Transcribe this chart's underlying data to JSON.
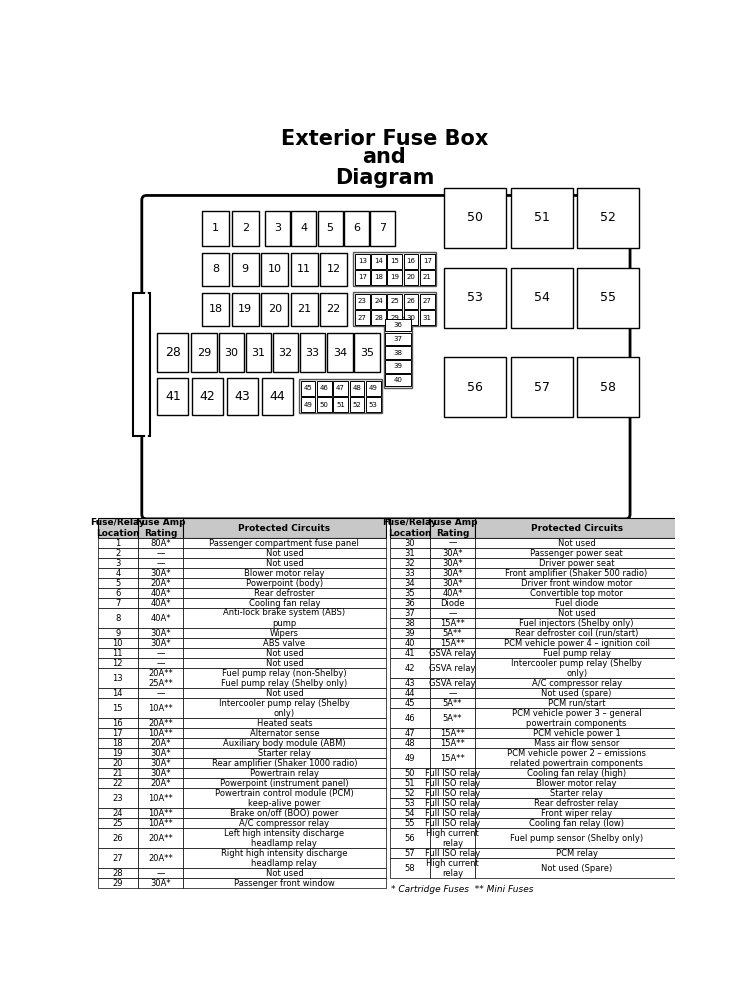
{
  "title_lines": [
    "Exterior Fuse Box",
    "and",
    "Diagram"
  ],
  "bg_color": "#ffffff",
  "table_left": {
    "headers": [
      "Fuse/Relay\nLocation",
      "Fuse Amp\nRating",
      "Protected Circuits"
    ],
    "rows": [
      [
        "1",
        "80A*",
        "Passenger compartment fuse panel"
      ],
      [
        "2",
        "—",
        "Not used"
      ],
      [
        "3",
        "—",
        "Not used"
      ],
      [
        "4",
        "30A*",
        "Blower motor relay"
      ],
      [
        "5",
        "20A*",
        "Powerpoint (body)"
      ],
      [
        "6",
        "40A*",
        "Rear defroster"
      ],
      [
        "7",
        "40A*",
        "Cooling fan relay"
      ],
      [
        "8",
        "40A*",
        "Anti-lock brake system (ABS)\npump"
      ],
      [
        "9",
        "30A*",
        "Wipers"
      ],
      [
        "10",
        "30A*",
        "ABS valve"
      ],
      [
        "11",
        "—",
        "Not used"
      ],
      [
        "12",
        "—",
        "Not used"
      ],
      [
        "13",
        "20A**\n25A**",
        "Fuel pump relay (non-Shelby)\nFuel pump relay (Shelby only)"
      ],
      [
        "14",
        "—",
        "Not used"
      ],
      [
        "15",
        "10A**",
        "Intercooler pump relay (Shelby\nonly)"
      ],
      [
        "16",
        "20A**",
        "Heated seats"
      ],
      [
        "17",
        "10A**",
        "Alternator sense"
      ],
      [
        "18",
        "20A*",
        "Auxiliary body module (ABM)"
      ],
      [
        "19",
        "30A*",
        "Starter relay"
      ],
      [
        "20",
        "30A*",
        "Rear amplifier (Shaker 1000 radio)"
      ],
      [
        "21",
        "30A*",
        "Powertrain relay"
      ],
      [
        "22",
        "20A*",
        "Powerpoint (instrument panel)"
      ],
      [
        "23",
        "10A**",
        "Powertrain control module (PCM)\nkeep-alive power"
      ],
      [
        "24",
        "10A**",
        "Brake on/off (BOO) power"
      ],
      [
        "25",
        "10A**",
        "A/C compressor relay"
      ],
      [
        "26",
        "20A**",
        "Left high intensity discharge\nheadlamp relay"
      ],
      [
        "27",
        "20A**",
        "Right high intensity discharge\nheadlamp relay"
      ],
      [
        "28",
        "—",
        "Not used"
      ],
      [
        "29",
        "30A*",
        "Passenger front window"
      ]
    ]
  },
  "table_right": {
    "headers": [
      "Fuse/Relay\nLocation",
      "Fuse Amp\nRating",
      "Protected Circuits"
    ],
    "rows": [
      [
        "30",
        "—",
        "Not used"
      ],
      [
        "31",
        "30A*",
        "Passenger power seat"
      ],
      [
        "32",
        "30A*",
        "Driver power seat"
      ],
      [
        "33",
        "30A*",
        "Front amplifier (Shaker 500 radio)"
      ],
      [
        "34",
        "30A*",
        "Driver front window motor"
      ],
      [
        "35",
        "40A*",
        "Convertible top motor"
      ],
      [
        "36",
        "Diode",
        "Fuel diode"
      ],
      [
        "37",
        "—",
        "Not used"
      ],
      [
        "38",
        "15A**",
        "Fuel injectors (Shelby only)"
      ],
      [
        "39",
        "5A**",
        "Rear defroster coil (run/start)"
      ],
      [
        "40",
        "15A**",
        "PCM vehicle power 4 – ignition coil"
      ],
      [
        "41",
        "GSVA relay",
        "Fuel pump relay"
      ],
      [
        "42",
        "GSVA relay",
        "Intercooler pump relay (Shelby\nonly)"
      ],
      [
        "43",
        "GSVA relay",
        "A/C compressor relay"
      ],
      [
        "44",
        "—",
        "Not used (spare)"
      ],
      [
        "45",
        "5A**",
        "PCM run/start"
      ],
      [
        "46",
        "5A**",
        "PCM vehicle power 3 – general\npowertrain components"
      ],
      [
        "47",
        "15A**",
        "PCM vehicle power 1"
      ],
      [
        "48",
        "15A**",
        "Mass air flow sensor"
      ],
      [
        "49",
        "15A**",
        "PCM vehicle power 2 – emissions\nrelated powertrain components"
      ],
      [
        "50",
        "Full ISO relay",
        "Cooling fan relay (high)"
      ],
      [
        "51",
        "Full ISO relay",
        "Blower motor relay"
      ],
      [
        "52",
        "Full ISO relay",
        "Starter relay"
      ],
      [
        "53",
        "Full ISO relay",
        "Rear defroster relay"
      ],
      [
        "54",
        "Full ISO relay",
        "Front wiper relay"
      ],
      [
        "55",
        "Full ISO relay",
        "Cooling fan relay (low)"
      ],
      [
        "56",
        "High current\nrelay",
        "Fuel pump sensor (Shelby only)"
      ],
      [
        "57",
        "Full ISO relay",
        "PCM relay"
      ],
      [
        "58",
        "High current\nrelay",
        "Not used (Spare)"
      ]
    ]
  },
  "footnote": "* Cartridge Fuses  ** Mini Fuses"
}
